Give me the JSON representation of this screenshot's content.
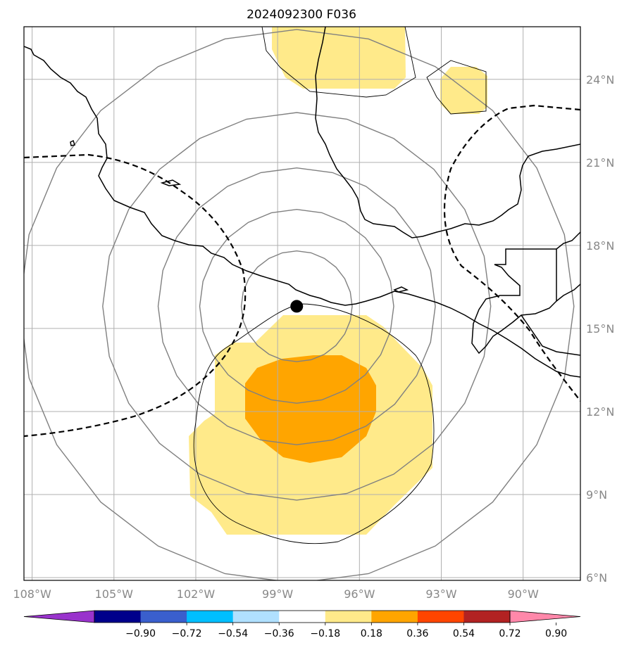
{
  "title": "2024092300 F036",
  "map": {
    "lon_range": [
      -108.3,
      -87.9
    ],
    "lat_range": [
      5.9,
      25.9
    ],
    "lon_ticks": [
      {
        "value": -108,
        "label": "108°W"
      },
      {
        "value": -105,
        "label": "105°W"
      },
      {
        "value": -102,
        "label": "102°W"
      },
      {
        "value": -99,
        "label": "99°W"
      },
      {
        "value": -96,
        "label": "96°W"
      },
      {
        "value": -93,
        "label": "93°W"
      },
      {
        "value": -90,
        "label": "90°W"
      }
    ],
    "lat_ticks": [
      {
        "value": 6,
        "label": "6°N"
      },
      {
        "value": 9,
        "label": "9°N"
      },
      {
        "value": 12,
        "label": "12°N"
      },
      {
        "value": 15,
        "label": "15°N"
      },
      {
        "value": 18,
        "label": "18°N"
      },
      {
        "value": 21,
        "label": "21°N"
      },
      {
        "value": 24,
        "label": "24°N"
      }
    ],
    "storm_center": {
      "lon": -98.3,
      "lat": 15.8
    },
    "range_rings_deg": [
      2,
      3.5,
      5,
      7,
      10
    ],
    "colors": {
      "ring": "#808080",
      "grid": "#b0b0b0",
      "coast": "#000000",
      "fill_low": "#ffea8a",
      "fill_mid": "#ffa500"
    }
  },
  "colorbar": {
    "colors": [
      "#9933cc",
      "#00008b",
      "#3a5fcd",
      "#00bfff",
      "#b0e0ff",
      "#ffffff",
      "#ffea8a",
      "#ffa500",
      "#ff4500",
      "#b22222",
      "#ff88aa"
    ],
    "tick_labels": [
      "−0.90",
      "−0.72",
      "−0.54",
      "−0.36",
      "−0.18",
      "0.18",
      "0.36",
      "0.54",
      "0.72",
      "0.90"
    ]
  }
}
